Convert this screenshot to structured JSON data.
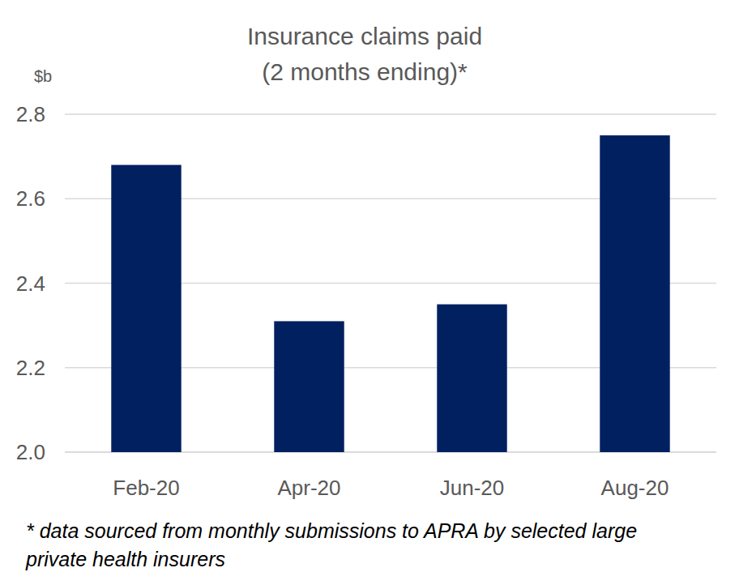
{
  "chart_data": {
    "type": "bar",
    "title": "Insurance claims paid",
    "subtitle": "(2 months ending)*",
    "y_label": "$b",
    "categories": [
      "Feb-20",
      "Apr-20",
      "Jun-20",
      "Aug-20"
    ],
    "values": [
      2.68,
      2.31,
      2.35,
      2.75
    ],
    "color": "#002060",
    "ylim": [
      2.0,
      2.8
    ],
    "yticks": [
      {
        "value": 2.0,
        "label": "2.0"
      },
      2.2,
      2.4,
      2.6,
      2.8
    ],
    "grid": true,
    "footnote": [
      "* data sourced from monthly submissions to APRA by selected large",
      "private health insurers"
    ]
  }
}
